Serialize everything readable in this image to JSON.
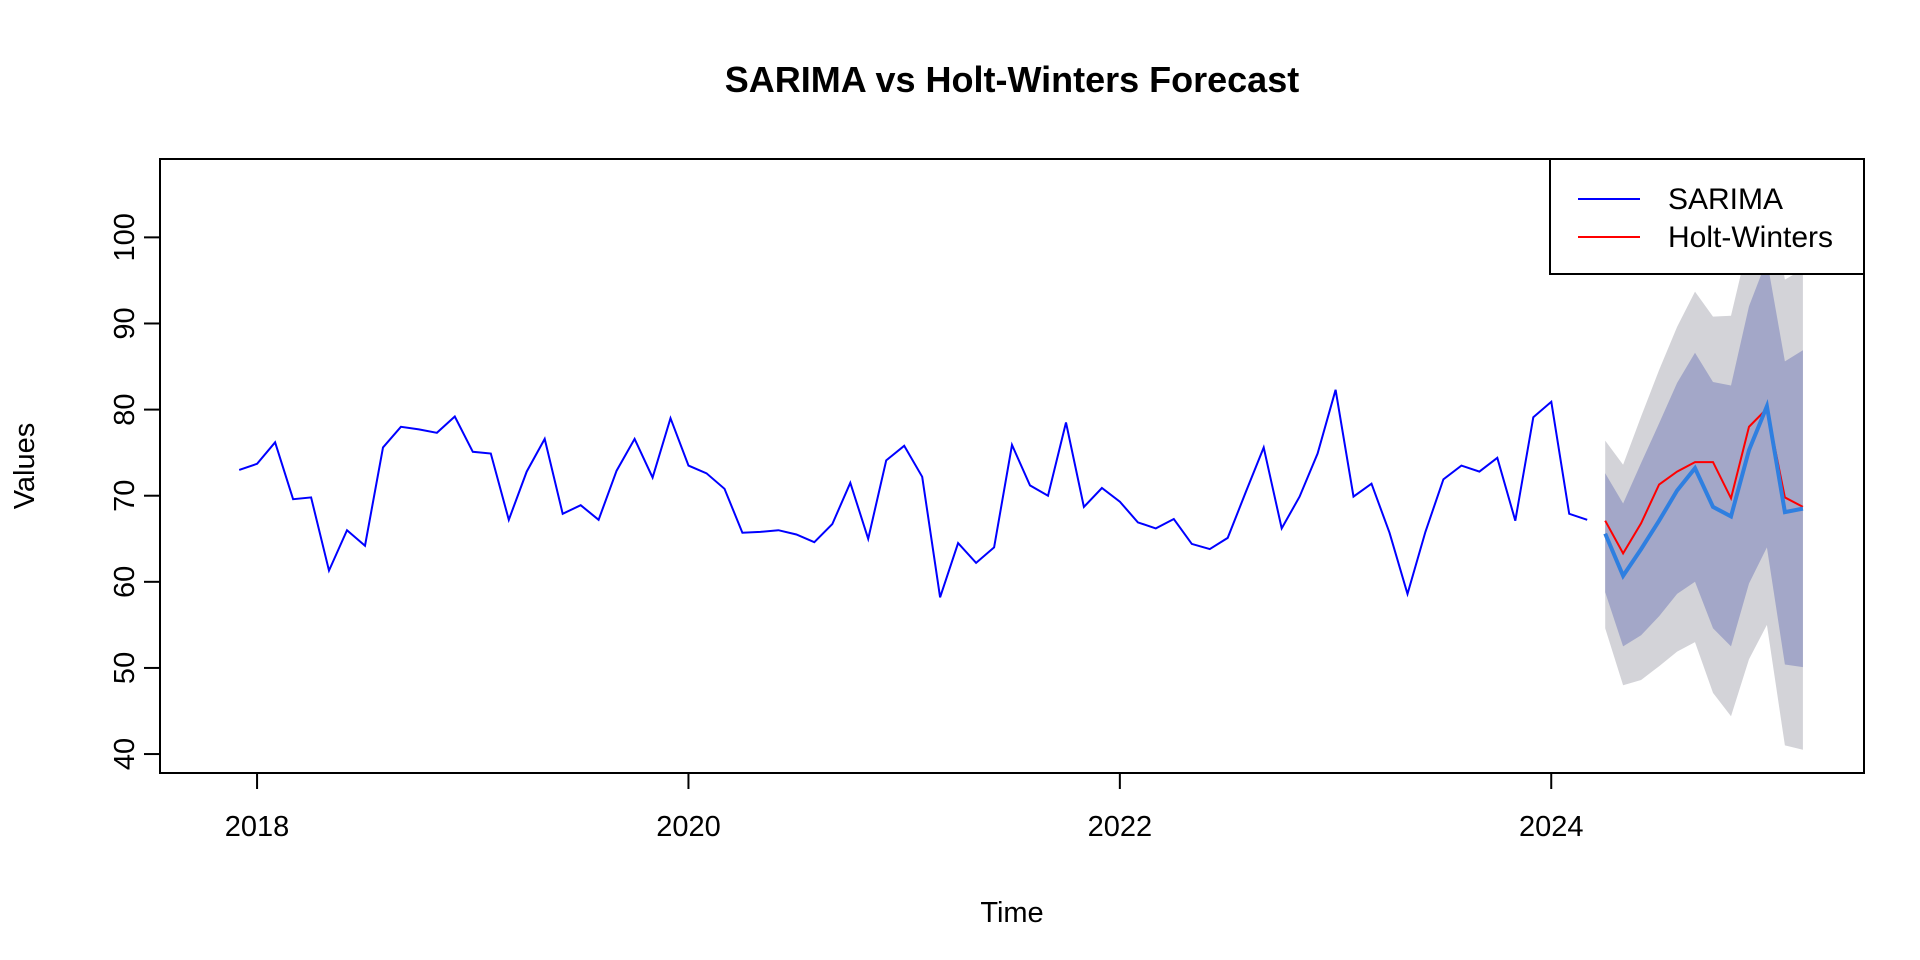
{
  "chart_data": {
    "type": "line",
    "title": "SARIMA vs Holt-Winters Forecast",
    "xlabel": "Time",
    "ylabel": "Values",
    "xlim": [
      2017.55,
      2025.45
    ],
    "ylim": [
      37.8,
      109.1
    ],
    "x_ticks": [
      2018,
      2020,
      2022,
      2024
    ],
    "x_tick_labels": [
      "2018",
      "2020",
      "2022",
      "2024"
    ],
    "y_ticks": [
      40,
      50,
      60,
      70,
      80,
      90,
      100
    ],
    "y_tick_labels": [
      "40",
      "50",
      "60",
      "70",
      "80",
      "90",
      "100"
    ],
    "legend": {
      "position": "top-right",
      "entries": [
        {
          "name": "SARIMA",
          "color": "#0000ff"
        },
        {
          "name": "Holt-Winters",
          "color": "#ff0000"
        }
      ]
    },
    "colors": {
      "observed": "#0000ff",
      "sarima_forecast": "#2f7fe0",
      "holt_winters": "#ff0000",
      "band_80": "#a3a7c8",
      "band_95": "#d3d3d8"
    },
    "observed": {
      "start": 2017.917,
      "step": 0.08333,
      "values": [
        73.0,
        73.7,
        76.2,
        69.6,
        69.8,
        61.3,
        66.0,
        64.2,
        75.6,
        78.0,
        77.7,
        77.3,
        79.2,
        75.1,
        74.9,
        67.2,
        72.8,
        76.6,
        67.9,
        68.9,
        67.2,
        72.9,
        76.6,
        72.1,
        79.0,
        73.5,
        72.6,
        70.8,
        65.7,
        65.8,
        66.0,
        65.5,
        64.6,
        66.7,
        71.5,
        65.0,
        74.1,
        75.8,
        72.2,
        58.2,
        64.5,
        62.2,
        64.0,
        75.9,
        71.2,
        70.0,
        78.5,
        68.7,
        70.9,
        69.3,
        66.9,
        66.2,
        67.3,
        64.4,
        63.8,
        65.1,
        70.4,
        75.6,
        66.2,
        69.9,
        74.9,
        82.3,
        69.9,
        71.4,
        65.7,
        58.6,
        65.8,
        71.9,
        73.5,
        72.8,
        74.4,
        67.1,
        79.1,
        80.9,
        67.9,
        67.2
      ]
    },
    "forecast": {
      "start": 2024.25,
      "step": 0.08333,
      "sarima": [
        65.6,
        60.7,
        63.8,
        67.1,
        70.6,
        73.2,
        68.7,
        67.6,
        75.3,
        80.4,
        68.1,
        68.5
      ],
      "holt_winters": [
        67.1,
        63.3,
        66.8,
        71.3,
        72.8,
        73.9,
        73.9,
        69.7,
        78.0,
        80.1,
        69.8,
        68.7
      ],
      "lo80": [
        58.8,
        52.5,
        53.8,
        56.0,
        58.6,
        60.0,
        54.6,
        52.5,
        59.8,
        64.0,
        50.4,
        50.1
      ],
      "hi80": [
        72.6,
        69.1,
        73.8,
        78.4,
        83.1,
        86.6,
        83.2,
        82.8,
        92.0,
        97.4,
        85.6,
        86.9
      ],
      "lo95": [
        54.6,
        48.0,
        48.6,
        50.2,
        51.9,
        53.0,
        47.1,
        44.4,
        51.0,
        55.0,
        41.0,
        40.5
      ],
      "hi95": [
        76.4,
        73.6,
        79.2,
        84.6,
        89.6,
        93.7,
        90.8,
        90.9,
        99.7,
        108.0,
        95.1,
        96.3
      ]
    }
  }
}
